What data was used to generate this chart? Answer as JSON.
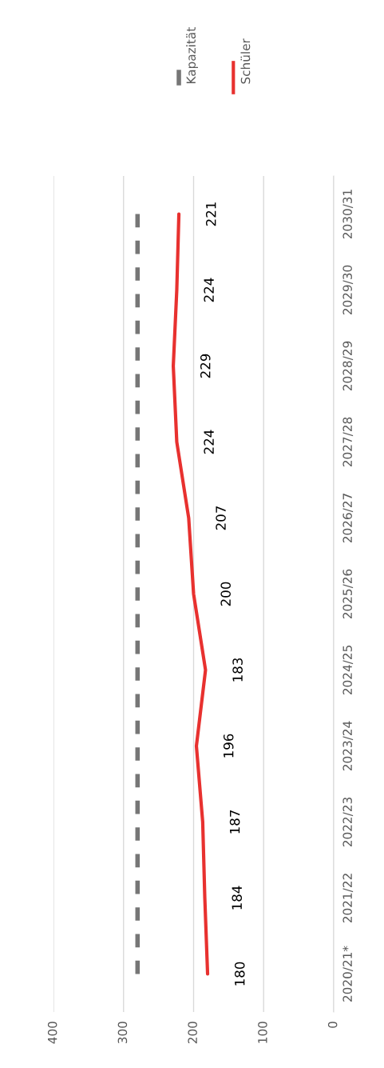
{
  "chart_data": {
    "type": "line",
    "orientation": "horizontal",
    "categories": [
      "2030/31",
      "2029/30",
      "2028/29",
      "2027/28",
      "2026/27",
      "2025/26",
      "2024/25",
      "2023/24",
      "2022/23",
      "2021/22",
      "2020/21*"
    ],
    "series": [
      {
        "name": "Kapazität",
        "color": "#767676",
        "line_style": "dashed",
        "values": [
          280,
          280,
          280,
          280,
          280,
          280,
          280,
          280,
          280,
          280,
          280
        ]
      },
      {
        "name": "Schüler",
        "color": "#e8312f",
        "line_style": "solid",
        "data_labels": true,
        "values": [
          221,
          224,
          229,
          224,
          207,
          200,
          183,
          196,
          187,
          184,
          180
        ]
      }
    ],
    "xlim": [
      400,
      0
    ],
    "xticks": [
      400,
      300,
      200,
      100,
      0
    ],
    "grid": "x",
    "legend": "top right",
    "marker": "none"
  }
}
